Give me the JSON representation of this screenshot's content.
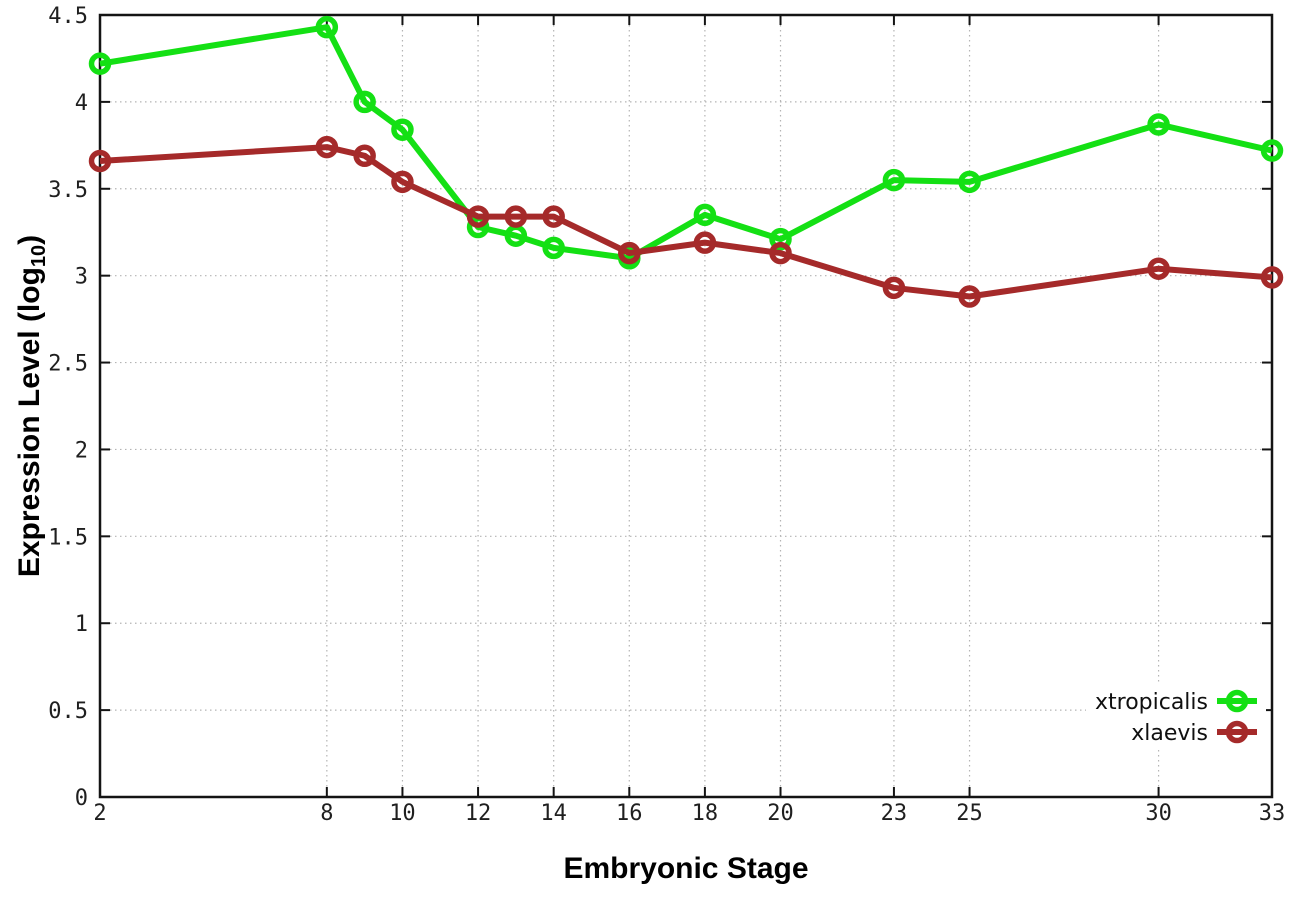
{
  "chart_data": {
    "type": "line",
    "title": "",
    "xlabel": "Embryonic Stage",
    "ylabel": "Expression Level (log10)",
    "ylabel_parts": {
      "main": "Expression Level (log",
      "sub": "10",
      "end": ")"
    },
    "x": [
      2,
      8,
      9,
      10,
      12,
      13,
      14,
      16,
      18,
      20,
      23,
      25,
      30,
      33
    ],
    "series": [
      {
        "name": "xtropicalis",
        "color": "#14e014",
        "values": [
          4.22,
          4.43,
          4.0,
          3.84,
          3.28,
          3.23,
          3.16,
          3.1,
          3.35,
          3.21,
          3.55,
          3.54,
          3.87,
          3.72
        ]
      },
      {
        "name": "xlaevis",
        "color": "#a52a2a",
        "values": [
          3.66,
          3.74,
          3.69,
          3.54,
          3.34,
          3.34,
          3.34,
          3.13,
          3.19,
          3.13,
          2.93,
          2.88,
          3.04,
          2.99
        ]
      }
    ],
    "xlim": [
      2,
      33
    ],
    "ylim": [
      0,
      4.5
    ],
    "xticks": {
      "values": [
        2,
        8,
        10,
        12,
        14,
        16,
        18,
        20,
        23,
        25,
        30,
        33
      ],
      "labels": [
        "2",
        "8",
        "10",
        "12",
        "14",
        "16",
        "18",
        "20",
        "23",
        "25",
        "30",
        "33"
      ]
    },
    "yticks": {
      "values": [
        0,
        0.5,
        1,
        1.5,
        2,
        2.5,
        3,
        3.5,
        4,
        4.5
      ],
      "labels": [
        "0",
        "0.5",
        "1",
        "1.5",
        "2",
        "2.5",
        "3",
        "3.5",
        "4",
        "4.5"
      ]
    },
    "grid": true,
    "legend_position": "bottom-right",
    "marker": "open-circle",
    "line_style": "linespoints",
    "colors": {
      "grid": "#b4b4b4",
      "axis": "#141414",
      "background": "#ffffff",
      "tick_text": "#1f1f1f"
    }
  }
}
